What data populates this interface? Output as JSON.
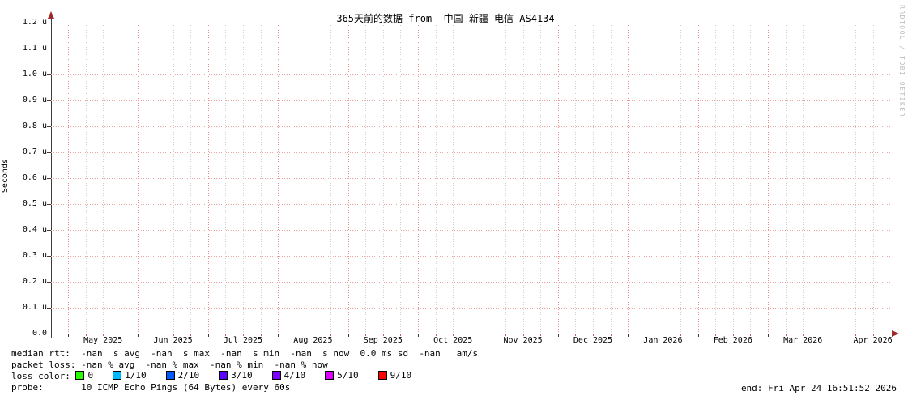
{
  "title": "365天前的数据 from  中国 新疆 电信 AS4134",
  "watermark": "RRDTOOL / TOBI OETIKER",
  "chart_data": {
    "type": "line",
    "title": "365天前的数据 from  中国 新疆 电信 AS4134",
    "xlabel": "",
    "ylabel": "Seconds",
    "ylim": [
      0,
      1.2e-06
    ],
    "y_tick_step": 1e-07,
    "grid": true,
    "legend_position": "bottom",
    "y_ticks": [
      "1.2 u",
      "1.1 u",
      "1.0 u",
      "0.9 u",
      "0.8 u",
      "0.7 u",
      "0.6 u",
      "0.5 u",
      "0.4 u",
      "0.3 u",
      "0.2 u",
      "0.1 u",
      "0.0"
    ],
    "x_ticks": [
      "May 2025",
      "Jun 2025",
      "Jul 2025",
      "Aug 2025",
      "Sep 2025",
      "Oct 2025",
      "Nov 2025",
      "Dec 2025",
      "Jan 2026",
      "Feb 2026",
      "Mar 2026",
      "Apr 2026"
    ],
    "series": []
  },
  "stats": {
    "median_rtt": "median rtt:  -nan  s avg  -nan  s max  -nan  s min  -nan  s now  0.0 ms sd  -nan   am/s",
    "packet_loss": "packet loss: -nan % avg  -nan % max  -nan % min  -nan % now",
    "loss_color_label": "loss color: ",
    "loss_levels": [
      {
        "label": "0",
        "color": "#26ff00"
      },
      {
        "label": "1/10",
        "color": "#00b8ff"
      },
      {
        "label": "2/10",
        "color": "#0059ff"
      },
      {
        "label": "3/10",
        "color": "#5e00ff"
      },
      {
        "label": "4/10",
        "color": "#7e00ff"
      },
      {
        "label": "5/10",
        "color": "#dd00ff"
      },
      {
        "label": "9/10",
        "color": "#ff0000"
      }
    ],
    "probe": "probe:       10 ICMP Echo Pings (64 Bytes) every 60s",
    "end_time": "end: Fri Apr 24 16:51:52 2026"
  }
}
